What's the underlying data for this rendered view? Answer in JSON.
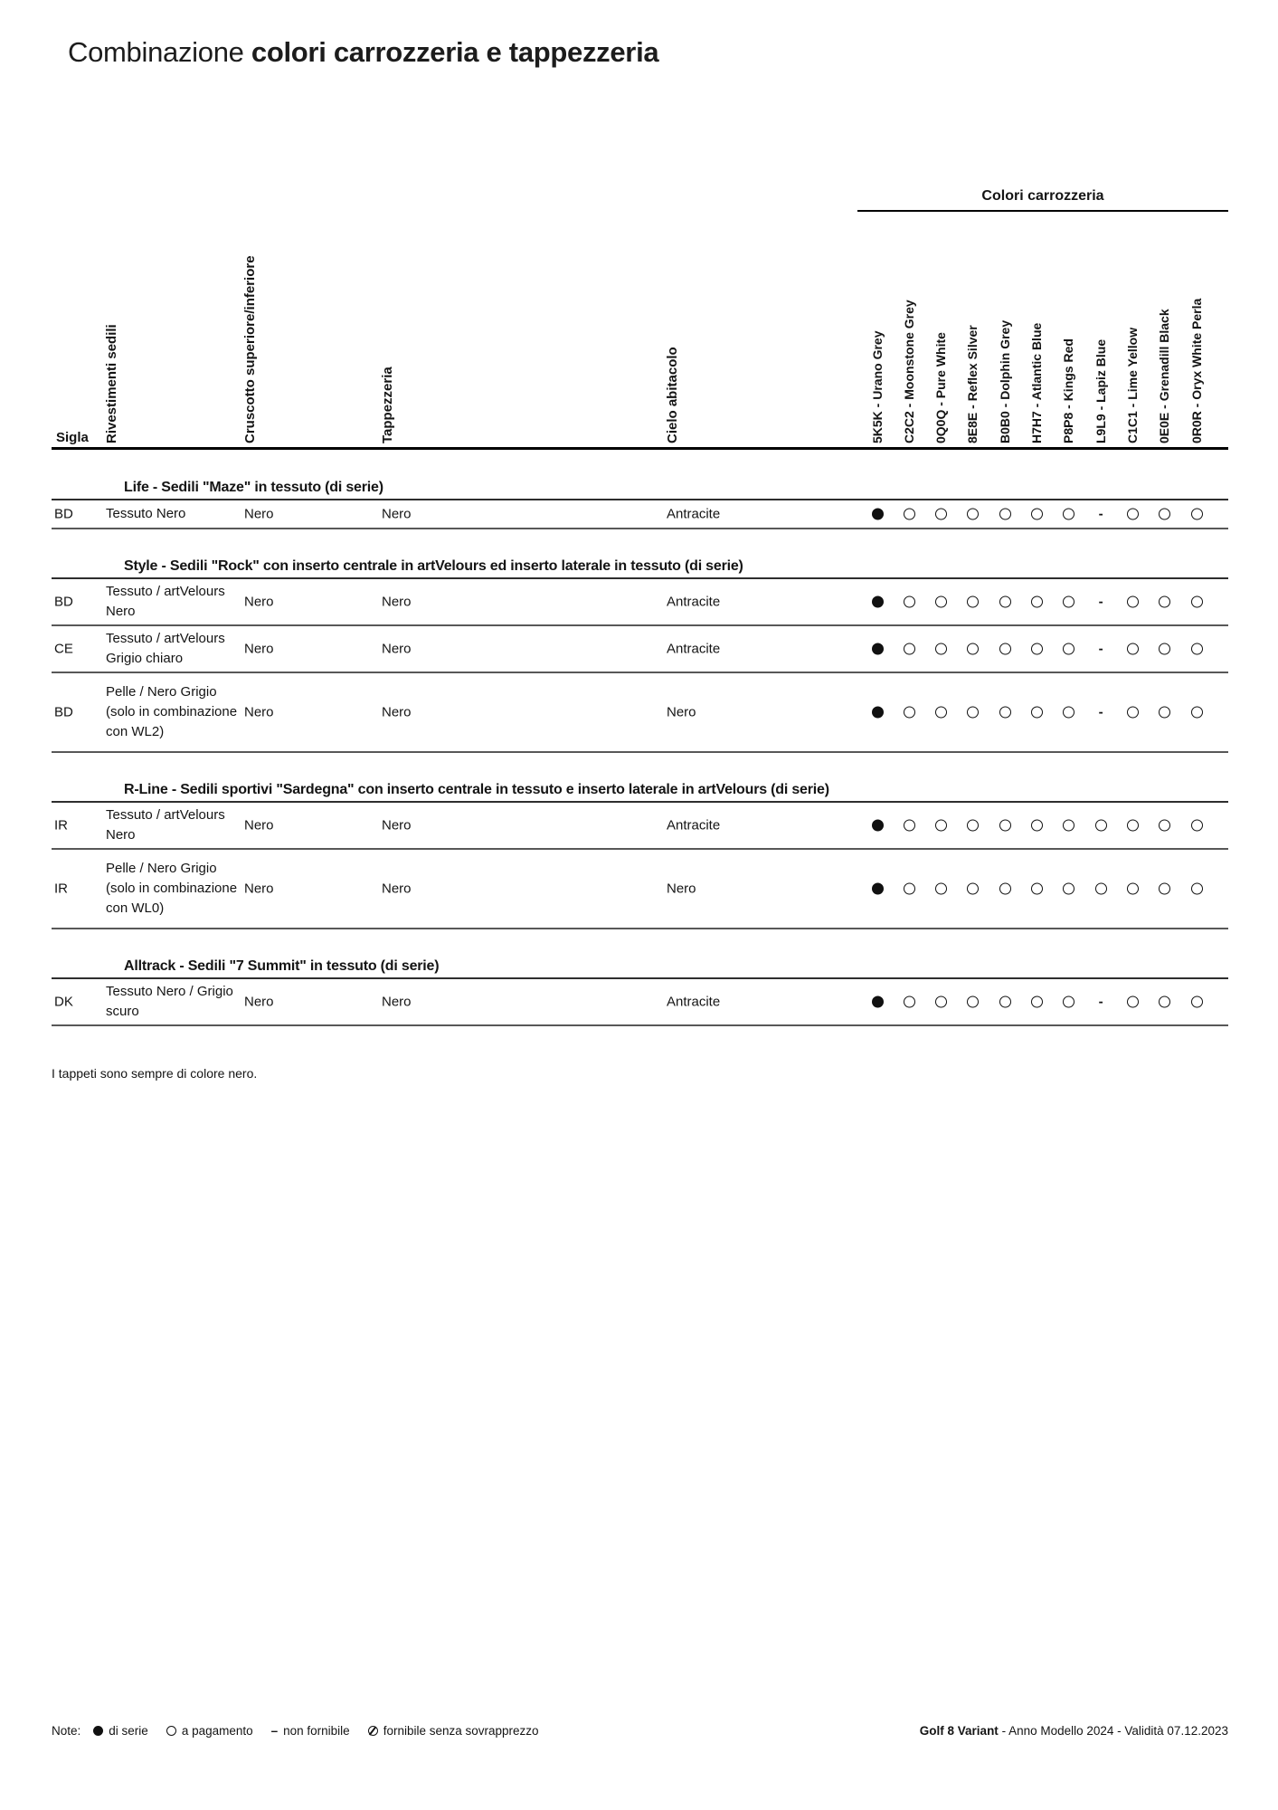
{
  "title": {
    "light": "Combinazione",
    "bold": "colori carrozzeria e tappezzeria"
  },
  "table": {
    "colori_carrozzeria_label": "Colori carrozzeria",
    "left_headers": [
      "Sigla",
      "Rivestimenti sedili",
      "Cruscotto superiore/inferiore",
      "Tappezzeria",
      "Cielo abitacolo"
    ],
    "color_columns": [
      "5K5K - Urano Grey",
      "C2C2 - Moonstone Grey",
      "0Q0Q - Pure White",
      "8E8E - Reflex Silver",
      "B0B0 - Dolphin Grey",
      "H7H7 - Atlantic Blue",
      "P8P8 - Kings Red",
      "L9L9 - Lapiz Blue",
      "C1C1 - Lime Yellow",
      "0E0E - Grenadill Black",
      "0R0R - Oryx White Perla"
    ],
    "sections": [
      {
        "title": "Life - Sedili \"Maze\" in tessuto (di serie)",
        "rows": [
          {
            "sigla": "BD",
            "rivestimenti": [
              "Tessuto Nero"
            ],
            "cruscotto": "Nero",
            "tappezzeria": "Nero",
            "cielo": "Antracite",
            "availability": [
              "filled",
              "open",
              "open",
              "open",
              "open",
              "open",
              "open",
              "dash",
              "open",
              "open",
              "open"
            ]
          }
        ]
      },
      {
        "title": "Style - Sedili \"Rock\" con inserto centrale in artVelours ed inserto laterale in tessuto (di serie)",
        "rows": [
          {
            "sigla": "BD",
            "rivestimenti": [
              "Tessuto / artVelours",
              "Nero"
            ],
            "cruscotto": "Nero",
            "tappezzeria": "Nero",
            "cielo": "Antracite",
            "availability": [
              "filled",
              "open",
              "open",
              "open",
              "open",
              "open",
              "open",
              "dash",
              "open",
              "open",
              "open"
            ]
          },
          {
            "sigla": "CE",
            "rivestimenti": [
              "Tessuto / artVelours",
              "Grigio chiaro"
            ],
            "cruscotto": "Nero",
            "tappezzeria": "Nero",
            "cielo": "Antracite",
            "availability": [
              "filled",
              "open",
              "open",
              "open",
              "open",
              "open",
              "open",
              "dash",
              "open",
              "open",
              "open"
            ]
          },
          {
            "sigla": "BD",
            "rivestimenti": [
              "Pelle / Nero Grigio",
              "(solo in combinazione",
              "con WL2)"
            ],
            "cruscotto": "Nero",
            "tappezzeria": "Nero",
            "cielo": "Nero",
            "availability": [
              "filled",
              "open",
              "open",
              "open",
              "open",
              "open",
              "open",
              "dash",
              "open",
              "open",
              "open"
            ]
          }
        ]
      },
      {
        "title": "R-Line - Sedili sportivi \"Sardegna\" con inserto centrale in tessuto e inserto laterale in artVelours (di serie)",
        "rows": [
          {
            "sigla": "IR",
            "rivestimenti": [
              "Tessuto / artVelours",
              "Nero"
            ],
            "cruscotto": "Nero",
            "tappezzeria": "Nero",
            "cielo": "Antracite",
            "availability": [
              "filled",
              "open",
              "open",
              "open",
              "open",
              "open",
              "open",
              "open",
              "open",
              "open",
              "open"
            ]
          },
          {
            "sigla": "IR",
            "rivestimenti": [
              "Pelle / Nero Grigio",
              "(solo in combinazione",
              "con WL0)"
            ],
            "cruscotto": "Nero",
            "tappezzeria": "Nero",
            "cielo": "Nero",
            "availability": [
              "filled",
              "open",
              "open",
              "open",
              "open",
              "open",
              "open",
              "open",
              "open",
              "open",
              "open"
            ]
          }
        ]
      },
      {
        "title": "Alltrack - Sedili \"7 Summit\" in tessuto (di serie)",
        "rows": [
          {
            "sigla": "DK",
            "rivestimenti": [
              "Tessuto Nero / Grigio",
              "scuro"
            ],
            "cruscotto": "Nero",
            "tappezzeria": "Nero",
            "cielo": "Antracite",
            "availability": [
              "filled",
              "open",
              "open",
              "open",
              "open",
              "open",
              "open",
              "dash",
              "open",
              "open",
              "open"
            ]
          }
        ]
      }
    ]
  },
  "note": "I tappeti sono sempre di colore nero.",
  "footer": {
    "note_label": "Note:",
    "legend": [
      {
        "symbol": "filled",
        "label": "di serie"
      },
      {
        "symbol": "open",
        "label": "a pagamento"
      },
      {
        "symbol": "dash",
        "label": "non fornibile"
      },
      {
        "symbol": "slashed",
        "label": "fornibile senza sovrapprezzo"
      }
    ],
    "model": "Golf 8 Variant",
    "validity": " - Anno Modello 2024 - Validità 07.12.2023"
  }
}
